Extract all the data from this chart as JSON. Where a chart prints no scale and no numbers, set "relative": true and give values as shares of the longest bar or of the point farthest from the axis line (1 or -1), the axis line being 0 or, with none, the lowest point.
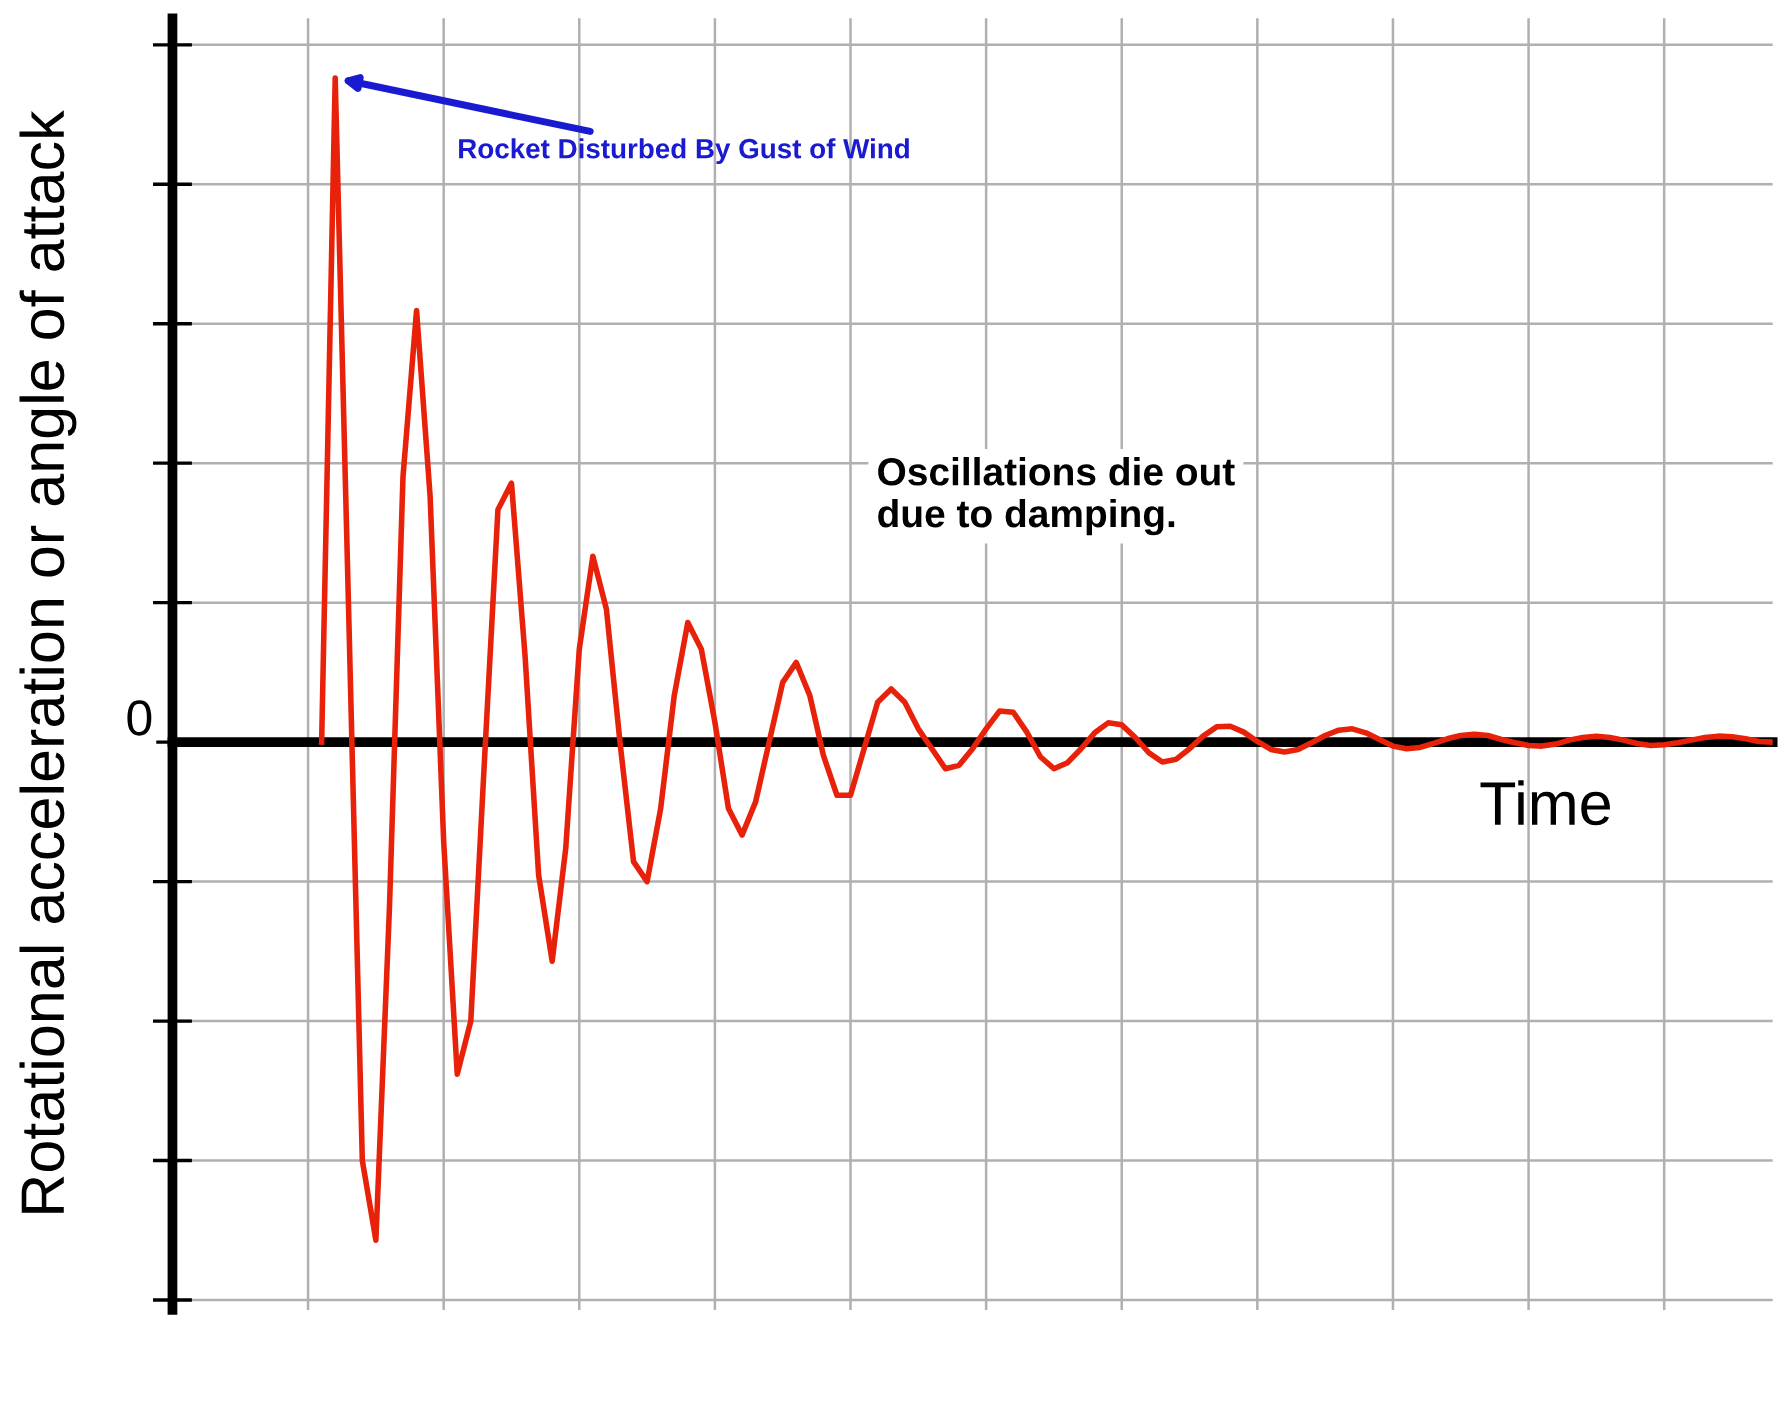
{
  "chart_data": {
    "type": "line",
    "relative": true,
    "xlabel": "Time",
    "ylabel": "Rotational acceleration or angle of attack",
    "grid": true,
    "marker": "none",
    "line_style": "solid",
    "annotations": [
      "Rocket Disturbed By Gust of Wind",
      "Oscillations die out\ndue to damping.",
      "0"
    ],
    "categories": [
      null,
      null,
      null,
      null,
      null,
      null,
      null,
      null,
      null,
      null,
      null,
      null,
      null,
      null,
      null,
      null,
      null,
      null,
      null,
      null,
      null,
      null,
      null,
      null,
      null,
      null,
      null,
      null,
      null,
      null,
      null,
      null,
      null,
      null,
      null,
      null,
      null,
      null,
      null,
      null,
      null,
      null,
      null,
      null,
      null,
      null,
      null,
      null,
      null,
      null,
      null,
      null,
      null,
      null,
      null,
      null,
      null,
      null,
      null,
      null,
      null,
      null,
      null,
      null,
      null,
      null,
      null,
      null,
      null,
      null,
      null,
      null,
      null,
      null,
      null,
      null,
      null,
      null,
      null,
      null,
      null,
      null,
      null,
      null,
      null,
      null,
      null,
      null,
      null,
      null,
      null,
      null,
      null,
      null,
      null,
      null,
      null,
      null,
      null,
      null,
      null,
      null,
      null,
      null,
      null,
      null,
      null,
      null,
      null,
      null,
      null,
      null,
      null,
      null,
      null,
      null,
      null,
      null,
      null
    ],
    "series": [
      {
        "color": "#e8210a",
        "values": [
          null,
          null,
          null,
          null,
          null,
          null,
          null,
          null,
          null,
          null,
          null,
          0,
          1,
          0.19,
          -0.63,
          -0.75,
          -0.25,
          0.4,
          0.65,
          0.37,
          -0.15,
          -0.5,
          -0.42,
          -0.03,
          0.35,
          0.39,
          0.13,
          -0.2,
          -0.33,
          -0.16,
          0.14,
          0.28,
          0.2,
          0.0,
          -0.18,
          -0.21,
          -0.1,
          0.07,
          0.18,
          0.14,
          0.03,
          -0.1,
          -0.14,
          -0.09,
          0.0,
          0.09,
          0.12,
          0.07,
          -0.02,
          -0.08,
          -0.08,
          -0.01,
          0.06,
          0.08,
          0.06,
          0.02,
          -0.01,
          -0.04,
          -0.035,
          -0.01,
          0.02,
          0.047,
          0.045,
          0.015,
          -0.022,
          -0.04,
          -0.031,
          -0.01,
          0.014,
          0.029,
          0.026,
          0.007,
          -0.016,
          -0.03,
          -0.026,
          -0.01,
          0.009,
          0.023,
          0.024,
          0.015,
          0.001,
          -0.011,
          -0.015,
          -0.011,
          -0.001,
          0.01,
          0.018,
          0.02,
          0.014,
          0.004,
          -0.006,
          -0.01,
          -0.008,
          -0.002,
          0.005,
          0.01,
          0.012,
          0.01,
          0.004,
          -0.001,
          -0.005,
          -0.006,
          -0.003,
          0.003,
          0.007,
          0.009,
          0.007,
          0.003,
          -0.002,
          -0.005,
          -0.004,
          -0.001,
          0.003,
          0.007,
          0.009,
          0.008,
          0.005,
          0.001,
          0
        ]
      }
    ]
  }
}
